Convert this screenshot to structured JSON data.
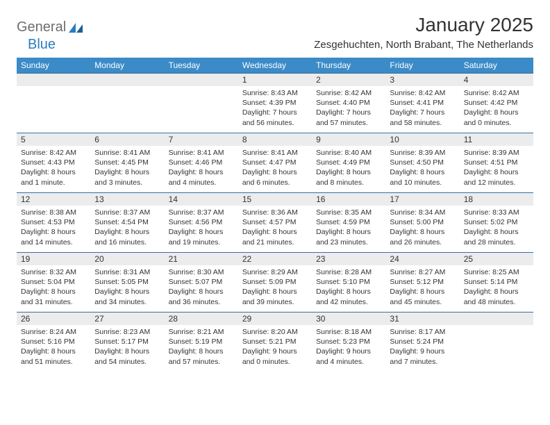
{
  "logo": {
    "text1": "General",
    "text2": "Blue"
  },
  "title": "January 2025",
  "location": "Zesgehuchten, North Brabant, The Netherlands",
  "colors": {
    "header_bg": "#3b8bc8",
    "header_text": "#ffffff",
    "daynum_bg": "#ececec",
    "border": "#3b6f9b",
    "logo_gray": "#6d6d6d",
    "logo_blue": "#2a7dc0",
    "text": "#333333",
    "page_bg": "#ffffff"
  },
  "weekdays": [
    "Sunday",
    "Monday",
    "Tuesday",
    "Wednesday",
    "Thursday",
    "Friday",
    "Saturday"
  ],
  "weeks": [
    [
      null,
      null,
      null,
      {
        "n": "1",
        "sunrise": "8:43 AM",
        "sunset": "4:39 PM",
        "daylight": "7 hours and 56 minutes."
      },
      {
        "n": "2",
        "sunrise": "8:42 AM",
        "sunset": "4:40 PM",
        "daylight": "7 hours and 57 minutes."
      },
      {
        "n": "3",
        "sunrise": "8:42 AM",
        "sunset": "4:41 PM",
        "daylight": "7 hours and 58 minutes."
      },
      {
        "n": "4",
        "sunrise": "8:42 AM",
        "sunset": "4:42 PM",
        "daylight": "8 hours and 0 minutes."
      }
    ],
    [
      {
        "n": "5",
        "sunrise": "8:42 AM",
        "sunset": "4:43 PM",
        "daylight": "8 hours and 1 minute."
      },
      {
        "n": "6",
        "sunrise": "8:41 AM",
        "sunset": "4:45 PM",
        "daylight": "8 hours and 3 minutes."
      },
      {
        "n": "7",
        "sunrise": "8:41 AM",
        "sunset": "4:46 PM",
        "daylight": "8 hours and 4 minutes."
      },
      {
        "n": "8",
        "sunrise": "8:41 AM",
        "sunset": "4:47 PM",
        "daylight": "8 hours and 6 minutes."
      },
      {
        "n": "9",
        "sunrise": "8:40 AM",
        "sunset": "4:49 PM",
        "daylight": "8 hours and 8 minutes."
      },
      {
        "n": "10",
        "sunrise": "8:39 AM",
        "sunset": "4:50 PM",
        "daylight": "8 hours and 10 minutes."
      },
      {
        "n": "11",
        "sunrise": "8:39 AM",
        "sunset": "4:51 PM",
        "daylight": "8 hours and 12 minutes."
      }
    ],
    [
      {
        "n": "12",
        "sunrise": "8:38 AM",
        "sunset": "4:53 PM",
        "daylight": "8 hours and 14 minutes."
      },
      {
        "n": "13",
        "sunrise": "8:37 AM",
        "sunset": "4:54 PM",
        "daylight": "8 hours and 16 minutes."
      },
      {
        "n": "14",
        "sunrise": "8:37 AM",
        "sunset": "4:56 PM",
        "daylight": "8 hours and 19 minutes."
      },
      {
        "n": "15",
        "sunrise": "8:36 AM",
        "sunset": "4:57 PM",
        "daylight": "8 hours and 21 minutes."
      },
      {
        "n": "16",
        "sunrise": "8:35 AM",
        "sunset": "4:59 PM",
        "daylight": "8 hours and 23 minutes."
      },
      {
        "n": "17",
        "sunrise": "8:34 AM",
        "sunset": "5:00 PM",
        "daylight": "8 hours and 26 minutes."
      },
      {
        "n": "18",
        "sunrise": "8:33 AM",
        "sunset": "5:02 PM",
        "daylight": "8 hours and 28 minutes."
      }
    ],
    [
      {
        "n": "19",
        "sunrise": "8:32 AM",
        "sunset": "5:04 PM",
        "daylight": "8 hours and 31 minutes."
      },
      {
        "n": "20",
        "sunrise": "8:31 AM",
        "sunset": "5:05 PM",
        "daylight": "8 hours and 34 minutes."
      },
      {
        "n": "21",
        "sunrise": "8:30 AM",
        "sunset": "5:07 PM",
        "daylight": "8 hours and 36 minutes."
      },
      {
        "n": "22",
        "sunrise": "8:29 AM",
        "sunset": "5:09 PM",
        "daylight": "8 hours and 39 minutes."
      },
      {
        "n": "23",
        "sunrise": "8:28 AM",
        "sunset": "5:10 PM",
        "daylight": "8 hours and 42 minutes."
      },
      {
        "n": "24",
        "sunrise": "8:27 AM",
        "sunset": "5:12 PM",
        "daylight": "8 hours and 45 minutes."
      },
      {
        "n": "25",
        "sunrise": "8:25 AM",
        "sunset": "5:14 PM",
        "daylight": "8 hours and 48 minutes."
      }
    ],
    [
      {
        "n": "26",
        "sunrise": "8:24 AM",
        "sunset": "5:16 PM",
        "daylight": "8 hours and 51 minutes."
      },
      {
        "n": "27",
        "sunrise": "8:23 AM",
        "sunset": "5:17 PM",
        "daylight": "8 hours and 54 minutes."
      },
      {
        "n": "28",
        "sunrise": "8:21 AM",
        "sunset": "5:19 PM",
        "daylight": "8 hours and 57 minutes."
      },
      {
        "n": "29",
        "sunrise": "8:20 AM",
        "sunset": "5:21 PM",
        "daylight": "9 hours and 0 minutes."
      },
      {
        "n": "30",
        "sunrise": "8:18 AM",
        "sunset": "5:23 PM",
        "daylight": "9 hours and 4 minutes."
      },
      {
        "n": "31",
        "sunrise": "8:17 AM",
        "sunset": "5:24 PM",
        "daylight": "9 hours and 7 minutes."
      },
      null
    ]
  ],
  "labels": {
    "sunrise": "Sunrise: ",
    "sunset": "Sunset: ",
    "daylight": "Daylight: "
  }
}
